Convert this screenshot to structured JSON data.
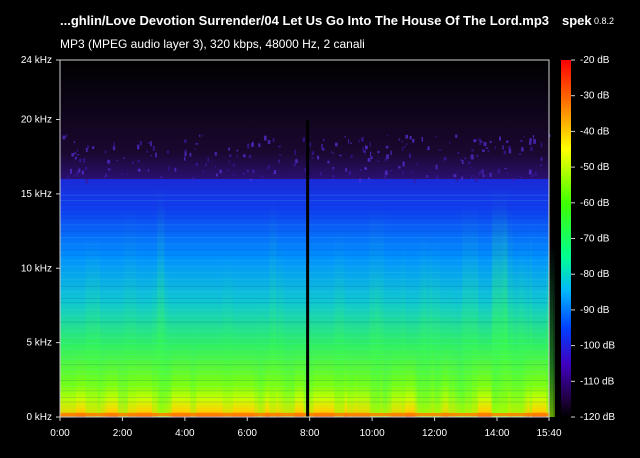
{
  "header": {
    "title": "...ghlin/Love Devotion Surrender/04 Let Us Go Into The House Of The Lord.mp3",
    "app_name": "spek",
    "app_version": "0.8.2",
    "subtitle": "MP3 (MPEG audio layer 3), 320 kbps, 48000 Hz, 2 canali"
  },
  "frequency_axis": {
    "labels": [
      "24 kHz",
      "20 kHz",
      "15 kHz",
      "10 kHz",
      "5 kHz",
      "0 kHz"
    ],
    "values_khz": [
      24,
      20,
      15,
      10,
      5,
      0
    ],
    "range_khz": [
      0,
      24
    ]
  },
  "time_axis": {
    "labels": [
      "0:00",
      "2:00",
      "4:00",
      "6:00",
      "8:00",
      "10:00",
      "12:00",
      "14:00",
      "15:40"
    ],
    "values_sec": [
      0,
      120,
      240,
      360,
      480,
      600,
      720,
      840,
      940
    ],
    "duration_sec": 940
  },
  "db_scale": {
    "labels": [
      "-20 dB",
      "-30 dB",
      "-40 dB",
      "-50 dB",
      "-60 dB",
      "-70 dB",
      "-80 dB",
      "-90 dB",
      "-100 dB",
      "-110 dB",
      "-120 dB"
    ],
    "values_db": [
      -20,
      -30,
      -40,
      -50,
      -60,
      -70,
      -80,
      -90,
      -100,
      -110,
      -120
    ],
    "gradient": [
      "#ff0000",
      "#ffa000",
      "#ffff00",
      "#40ff00",
      "#00ff90",
      "#00b4ff",
      "#0040ff",
      "#4000c0",
      "#200040",
      "#000000"
    ]
  },
  "spectrogram": {
    "lowpass_khz": 16,
    "silence_sec": 476
  }
}
